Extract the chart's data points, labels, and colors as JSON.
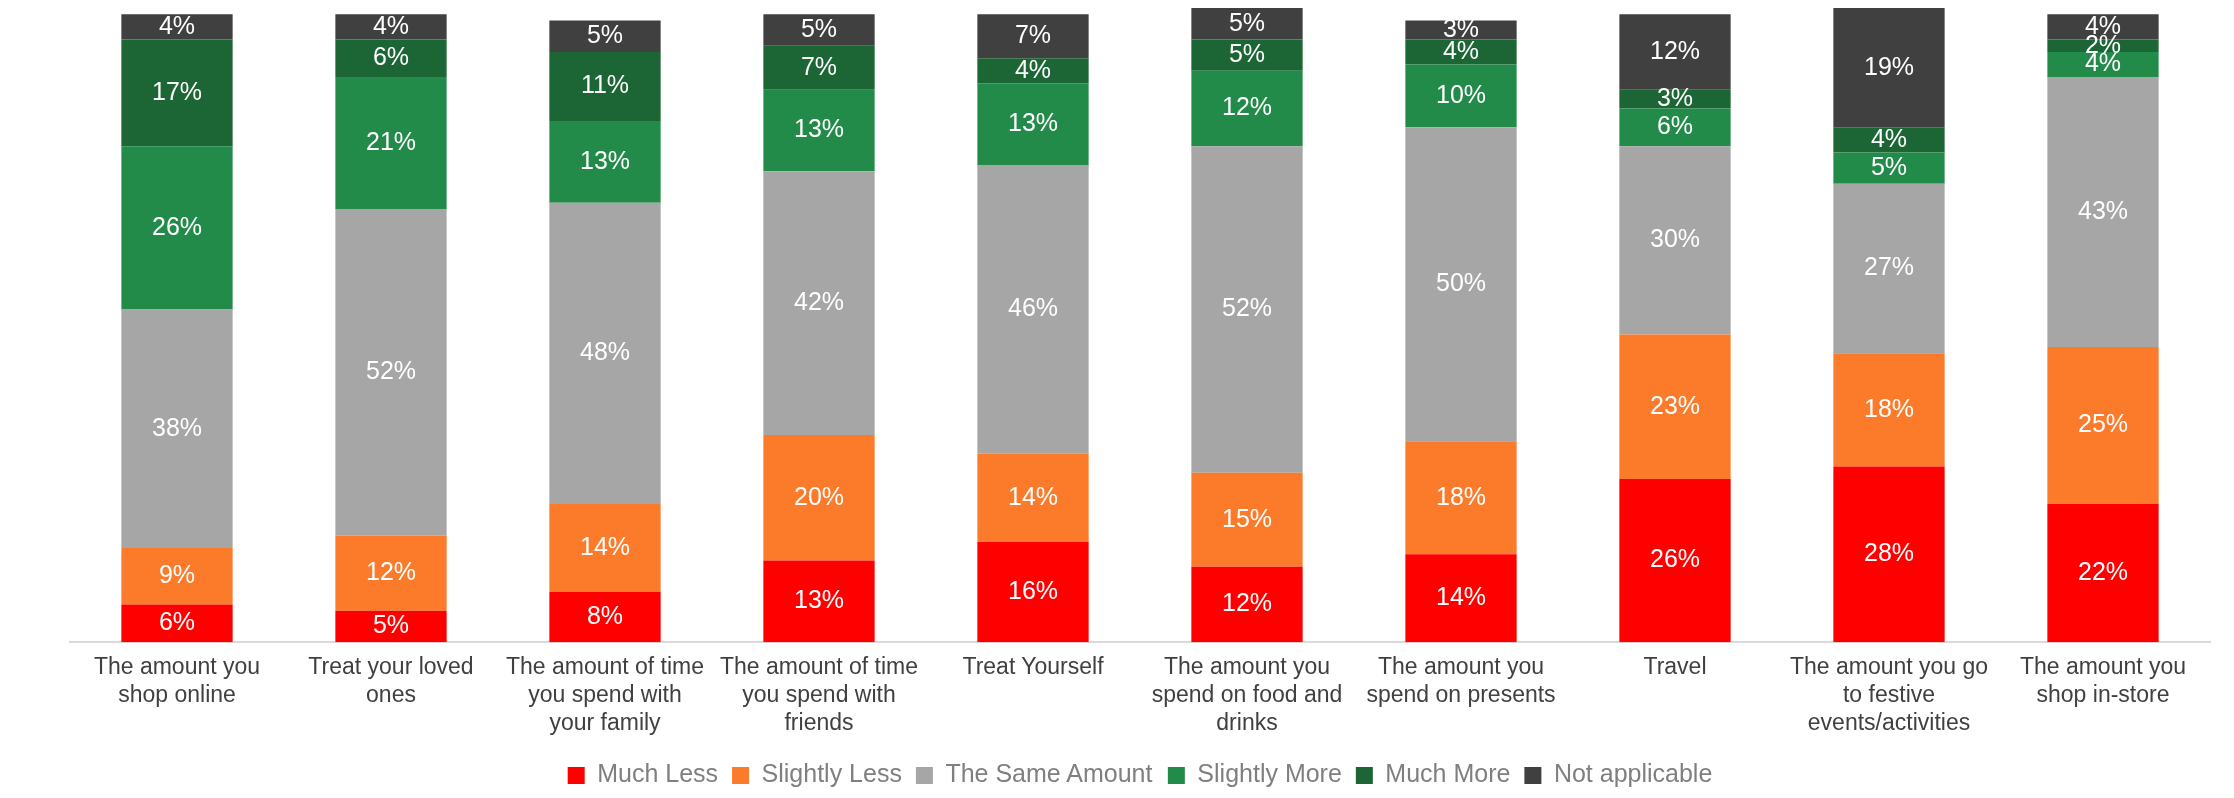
{
  "chart_data": {
    "type": "bar",
    "stacked": true,
    "categories": [
      "The amount you shop online",
      "Treat your loved ones",
      "The amount of time you spend with your family",
      "The amount of time you spend with friends",
      "Treat Yourself",
      "The amount you spend on food and drinks",
      "The amount you spend on presents",
      "Travel",
      "The amount you go to festive events/activities",
      "The amount you shop in-store"
    ],
    "series": [
      {
        "name": "Much Less",
        "color": "#ff0000",
        "values": [
          6,
          5,
          8,
          13,
          16,
          12,
          14,
          26,
          28,
          22
        ],
        "value_labels": [
          "6%",
          "5%",
          "8%",
          "13%",
          "16%",
          "12%",
          "14%",
          "26%",
          "28%",
          "22%"
        ]
      },
      {
        "name": "Slightly Less",
        "color": "#fb7b2b",
        "values": [
          9,
          12,
          14,
          20,
          14,
          15,
          18,
          23,
          18,
          25
        ],
        "value_labels": [
          "9%",
          "12%",
          "14%",
          "20%",
          "14%",
          "15%",
          "18%",
          "23%",
          "18%",
          "25%"
        ]
      },
      {
        "name": "The Same Amount",
        "color": "#a6a6a6",
        "values": [
          38,
          52,
          48,
          42,
          46,
          52,
          50,
          30,
          27,
          43
        ],
        "value_labels": [
          "38%",
          "52%",
          "48%",
          "42%",
          "46%",
          "52%",
          "50%",
          "30%",
          "27%",
          "43%"
        ]
      },
      {
        "name": "Slightly More",
        "color": "#238b49",
        "values": [
          26,
          21,
          13,
          13,
          13,
          12,
          10,
          6,
          5,
          4
        ],
        "value_labels": [
          "26%",
          "21%",
          "13%",
          "13%",
          "13%",
          "12%",
          "10%",
          "6%",
          "5%",
          "4%"
        ]
      },
      {
        "name": "Much More",
        "color": "#1c6535",
        "values": [
          17,
          6,
          11,
          7,
          4,
          5,
          4,
          3,
          4,
          2
        ],
        "value_labels": [
          "17%",
          "6%",
          "11%",
          "7%",
          "4%",
          "5%",
          "4%",
          "3%",
          "4%",
          "2%"
        ]
      },
      {
        "name": "Not applicable",
        "color": "#404040",
        "values": [
          4,
          4,
          5,
          5,
          7,
          5,
          3,
          12,
          19,
          4
        ],
        "value_labels": [
          "4%",
          "4%",
          "5%",
          "5%",
          "7%",
          "5%",
          "3%",
          "12%",
          "19%",
          "4%"
        ]
      }
    ],
    "grid": false,
    "legend": "bottom"
  }
}
